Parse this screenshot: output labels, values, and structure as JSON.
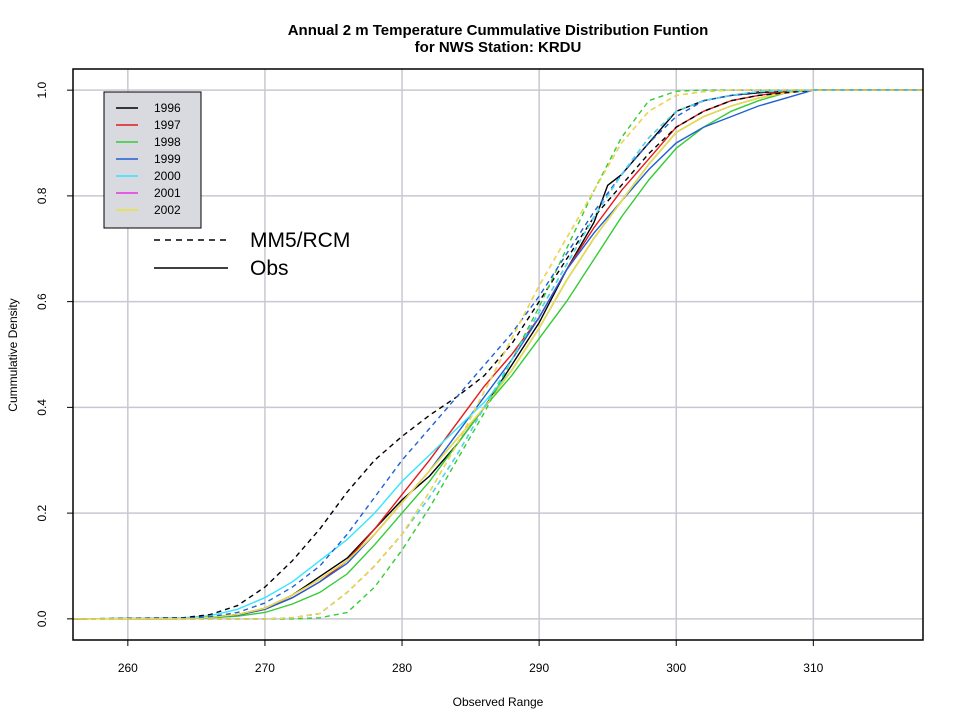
{
  "chart_data": {
    "type": "line",
    "title": "Annual 2 m Temperature Cummulative Distribution Funtion",
    "subtitle": "for NWS Station: KRDU",
    "xlabel": "Observed Range",
    "ylabel": "Cummulative Density",
    "xlim": [
      256,
      318
    ],
    "ylim": [
      -0.04,
      1.04
    ],
    "x_ticks": [
      260,
      270,
      280,
      290,
      300,
      310
    ],
    "y_ticks": [
      0.0,
      0.2,
      0.4,
      0.6,
      0.8,
      1.0
    ],
    "x_tick_labels": [
      "260",
      "270",
      "280",
      "290",
      "300",
      "310"
    ],
    "y_tick_labels": [
      "0.0",
      "0.2",
      "0.4",
      "0.6",
      "0.8",
      "1.0"
    ],
    "grid": true,
    "legend_position": "top-left",
    "legend": [
      "1996",
      "1997",
      "1998",
      "1999",
      "2000",
      "2001",
      "2002"
    ],
    "line_style_legend": [
      {
        "label": "MM5/RCM",
        "style": "dashed"
      },
      {
        "label": "Obs",
        "style": "solid"
      }
    ],
    "series": [
      {
        "name": "1996",
        "type": "Obs",
        "color": "#000000",
        "x": [
          256,
          264,
          266,
          268,
          270,
          272,
          274,
          276,
          278,
          280,
          282,
          284,
          286,
          288,
          290,
          292,
          294,
          295,
          296,
          298,
          300,
          302,
          304,
          306,
          308,
          310,
          318
        ],
        "y": [
          0,
          0.001,
          0.003,
          0.008,
          0.02,
          0.045,
          0.08,
          0.115,
          0.17,
          0.225,
          0.27,
          0.33,
          0.4,
          0.48,
          0.56,
          0.66,
          0.75,
          0.82,
          0.84,
          0.9,
          0.96,
          0.98,
          0.99,
          0.995,
          0.998,
          1,
          1
        ]
      },
      {
        "name": "1997",
        "type": "Obs",
        "color": "#e41a1c",
        "x": [
          256,
          264,
          266,
          268,
          270,
          272,
          274,
          276,
          278,
          280,
          282,
          284,
          286,
          288,
          290,
          292,
          294,
          296,
          298,
          300,
          302,
          304,
          306,
          308,
          310,
          318
        ],
        "y": [
          0,
          0.001,
          0.003,
          0.007,
          0.018,
          0.04,
          0.07,
          0.11,
          0.17,
          0.235,
          0.3,
          0.37,
          0.44,
          0.5,
          0.57,
          0.66,
          0.74,
          0.81,
          0.87,
          0.93,
          0.96,
          0.98,
          0.99,
          0.997,
          1,
          1
        ]
      },
      {
        "name": "1998",
        "type": "Obs",
        "color": "#33cc33",
        "x": [
          256,
          264,
          266,
          268,
          270,
          272,
          274,
          276,
          278,
          280,
          282,
          284,
          286,
          288,
          290,
          292,
          294,
          296,
          298,
          300,
          302,
          304,
          306,
          308,
          310,
          318
        ],
        "y": [
          0,
          0.001,
          0.002,
          0.005,
          0.012,
          0.028,
          0.05,
          0.085,
          0.14,
          0.2,
          0.26,
          0.33,
          0.4,
          0.46,
          0.53,
          0.6,
          0.68,
          0.76,
          0.83,
          0.89,
          0.93,
          0.96,
          0.98,
          0.995,
          1,
          1
        ]
      },
      {
        "name": "1999",
        "type": "Obs",
        "color": "#1f5fd6",
        "x": [
          256,
          264,
          266,
          268,
          270,
          272,
          274,
          276,
          278,
          280,
          282,
          284,
          286,
          288,
          290,
          292,
          294,
          296,
          298,
          300,
          302,
          304,
          306,
          308,
          310,
          318
        ],
        "y": [
          0,
          0.001,
          0.003,
          0.007,
          0.018,
          0.04,
          0.07,
          0.105,
          0.16,
          0.22,
          0.28,
          0.35,
          0.42,
          0.49,
          0.57,
          0.66,
          0.73,
          0.79,
          0.85,
          0.9,
          0.93,
          0.95,
          0.97,
          0.985,
          1,
          1
        ]
      },
      {
        "name": "2000",
        "type": "Obs",
        "color": "#33e6ff",
        "x": [
          256,
          264,
          266,
          268,
          270,
          272,
          274,
          276,
          278,
          280,
          282,
          284,
          286,
          288,
          290,
          292,
          294,
          296,
          298,
          300,
          302,
          304,
          306,
          308,
          310,
          318
        ],
        "y": [
          0,
          0.002,
          0.006,
          0.018,
          0.04,
          0.07,
          0.11,
          0.15,
          0.2,
          0.26,
          0.31,
          0.36,
          0.41,
          0.47,
          0.55,
          0.64,
          0.72,
          0.79,
          0.86,
          0.92,
          0.95,
          0.97,
          0.985,
          0.995,
          1,
          1
        ]
      },
      {
        "name": "2001",
        "type": "Obs",
        "color": "#e633e6",
        "x": [
          256,
          264,
          266,
          268,
          270,
          272,
          274,
          276,
          278,
          280,
          282,
          284,
          286,
          288,
          290,
          292,
          294,
          296,
          298,
          300,
          302,
          304,
          306,
          308,
          310,
          318
        ],
        "y": [
          0,
          0.001,
          0.003,
          0.008,
          0.02,
          0.045,
          0.075,
          0.11,
          0.16,
          0.22,
          0.28,
          0.34,
          0.4,
          0.47,
          0.55,
          0.64,
          0.72,
          0.79,
          0.86,
          0.92,
          0.95,
          0.97,
          0.985,
          0.995,
          1,
          1
        ]
      },
      {
        "name": "2002",
        "type": "Obs",
        "color": "#e6e633",
        "x": [
          256,
          264,
          266,
          268,
          270,
          272,
          274,
          276,
          278,
          280,
          282,
          284,
          286,
          288,
          290,
          292,
          294,
          296,
          298,
          300,
          302,
          304,
          306,
          308,
          310,
          318
        ],
        "y": [
          0,
          0.001,
          0.003,
          0.008,
          0.02,
          0.045,
          0.075,
          0.11,
          0.16,
          0.22,
          0.28,
          0.34,
          0.4,
          0.47,
          0.55,
          0.64,
          0.72,
          0.79,
          0.86,
          0.92,
          0.95,
          0.97,
          0.985,
          0.995,
          1,
          1
        ]
      },
      {
        "name": "1996",
        "type": "MM5/RCM",
        "color": "#000000",
        "x": [
          256,
          264,
          266,
          268,
          270,
          272,
          274,
          276,
          278,
          280,
          282,
          284,
          286,
          288,
          290,
          292,
          294,
          296,
          298,
          300,
          302,
          304,
          306,
          310,
          318
        ],
        "y": [
          0,
          0.002,
          0.008,
          0.025,
          0.06,
          0.11,
          0.17,
          0.24,
          0.3,
          0.345,
          0.385,
          0.42,
          0.46,
          0.52,
          0.6,
          0.68,
          0.76,
          0.82,
          0.88,
          0.93,
          0.96,
          0.98,
          0.99,
          1,
          1
        ]
      },
      {
        "name": "1997",
        "type": "MM5/RCM",
        "color": "#e41a1c",
        "x": [
          256,
          270,
          272,
          274,
          276,
          278,
          280,
          282,
          284,
          286,
          288,
          290,
          292,
          294,
          296,
          298,
          300,
          302,
          304,
          306,
          310,
          318
        ],
        "y": [
          0,
          0,
          0.002,
          0.01,
          0.05,
          0.1,
          0.16,
          0.23,
          0.31,
          0.4,
          0.49,
          0.58,
          0.67,
          0.76,
          0.84,
          0.91,
          0.96,
          0.98,
          0.99,
          0.997,
          1,
          1
        ]
      },
      {
        "name": "1998",
        "type": "MM5/RCM",
        "color": "#33cc33",
        "x": [
          256,
          272,
          274,
          276,
          278,
          280,
          282,
          284,
          286,
          288,
          290,
          292,
          294,
          296,
          298,
          300,
          302,
          304,
          310,
          318
        ],
        "y": [
          0,
          0,
          0.002,
          0.012,
          0.06,
          0.13,
          0.21,
          0.3,
          0.39,
          0.49,
          0.59,
          0.7,
          0.81,
          0.91,
          0.98,
          0.998,
          1,
          1,
          1,
          1
        ]
      },
      {
        "name": "1999",
        "type": "MM5/RCM",
        "color": "#1f5fd6",
        "x": [
          256,
          264,
          266,
          268,
          270,
          272,
          274,
          276,
          278,
          280,
          282,
          284,
          286,
          288,
          290,
          292,
          294,
          296,
          298,
          300,
          302,
          304,
          306,
          310,
          318
        ],
        "y": [
          0,
          0.001,
          0.004,
          0.012,
          0.03,
          0.06,
          0.1,
          0.16,
          0.23,
          0.3,
          0.36,
          0.42,
          0.48,
          0.54,
          0.61,
          0.69,
          0.77,
          0.84,
          0.9,
          0.95,
          0.98,
          0.99,
          0.997,
          1,
          1
        ]
      },
      {
        "name": "2000",
        "type": "MM5/RCM",
        "color": "#33e6ff",
        "x": [
          256,
          270,
          272,
          274,
          276,
          278,
          280,
          282,
          284,
          286,
          288,
          290,
          292,
          294,
          296,
          298,
          300,
          302,
          304,
          306,
          310,
          318
        ],
        "y": [
          0,
          0,
          0.002,
          0.01,
          0.05,
          0.1,
          0.16,
          0.23,
          0.31,
          0.4,
          0.49,
          0.58,
          0.67,
          0.76,
          0.84,
          0.91,
          0.96,
          0.98,
          0.99,
          0.997,
          1,
          1
        ]
      },
      {
        "name": "2001",
        "type": "MM5/RCM",
        "color": "#e633e6",
        "x": [
          256,
          270,
          272,
          274,
          276,
          278,
          280,
          282,
          284,
          286,
          288,
          290,
          292,
          294,
          296,
          298,
          300,
          302,
          304,
          306,
          310,
          318
        ],
        "y": [
          0,
          0,
          0.002,
          0.01,
          0.05,
          0.1,
          0.16,
          0.24,
          0.33,
          0.43,
          0.53,
          0.63,
          0.72,
          0.81,
          0.9,
          0.96,
          0.99,
          0.997,
          1,
          1,
          1,
          1
        ]
      },
      {
        "name": "2002",
        "type": "MM5/RCM",
        "color": "#e6e633",
        "x": [
          256,
          270,
          272,
          274,
          276,
          278,
          280,
          282,
          284,
          286,
          288,
          290,
          292,
          294,
          296,
          298,
          300,
          302,
          304,
          306,
          310,
          318
        ],
        "y": [
          0,
          0,
          0.002,
          0.01,
          0.05,
          0.1,
          0.16,
          0.24,
          0.33,
          0.43,
          0.53,
          0.63,
          0.72,
          0.81,
          0.9,
          0.96,
          0.99,
          0.997,
          1,
          1,
          1,
          1
        ]
      }
    ]
  }
}
